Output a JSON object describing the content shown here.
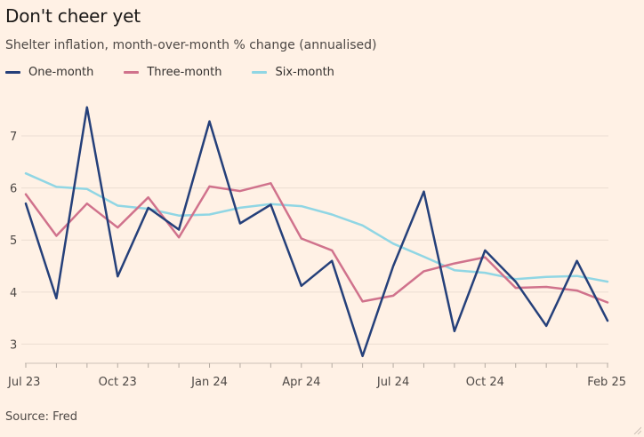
{
  "header": {
    "title": "Don't cheer yet",
    "subtitle": "Shelter inflation, month-over-month % change (annualised)"
  },
  "legend": [
    {
      "label": "One-month",
      "color": "#25407A"
    },
    {
      "label": "Three-month",
      "color": "#D0728C"
    },
    {
      "label": "Six-month",
      "color": "#90D6E4"
    }
  ],
  "footer": {
    "source": "Source: Fred"
  },
  "chart_data": {
    "type": "line",
    "x": [
      "Jul 23",
      "Aug 23",
      "Sep 23",
      "Oct 23",
      "Nov 23",
      "Dec 23",
      "Jan 24",
      "Feb 24",
      "Mar 24",
      "Apr 24",
      "May 24",
      "Jun 24",
      "Jul 24",
      "Aug 24",
      "Sep 24",
      "Oct 24",
      "Nov 24",
      "Dec 24",
      "Jan 25",
      "Feb 25"
    ],
    "xtick_labels": [
      "Jul 23",
      "Oct 23",
      "Jan 24",
      "Apr 24",
      "Jul 24",
      "Oct 24",
      "Feb 25"
    ],
    "yticks": [
      3,
      4,
      5,
      6,
      7
    ],
    "ylim": [
      2.7,
      7.7
    ],
    "grid": true,
    "legend_position": "top-left",
    "series": [
      {
        "name": "One-month",
        "color": "#25407A",
        "values": [
          5.7,
          3.88,
          7.55,
          4.3,
          5.62,
          5.2,
          7.28,
          5.32,
          5.68,
          4.12,
          4.6,
          2.77,
          4.5,
          5.93,
          3.25,
          4.8,
          4.2,
          3.35,
          4.6,
          3.45
        ]
      },
      {
        "name": "Three-month",
        "color": "#D0728C",
        "values": [
          5.88,
          5.08,
          5.7,
          5.24,
          5.82,
          5.05,
          6.03,
          5.94,
          6.09,
          5.03,
          4.8,
          3.82,
          3.93,
          4.4,
          4.55,
          4.67,
          4.08,
          4.1,
          4.03,
          3.8
        ]
      },
      {
        "name": "Six-month",
        "color": "#90D6E4",
        "values": [
          6.28,
          6.02,
          5.98,
          5.66,
          5.6,
          5.47,
          5.49,
          5.62,
          5.69,
          5.65,
          5.49,
          5.28,
          4.93,
          4.68,
          4.42,
          4.37,
          4.25,
          4.29,
          4.31,
          4.2
        ]
      }
    ]
  }
}
